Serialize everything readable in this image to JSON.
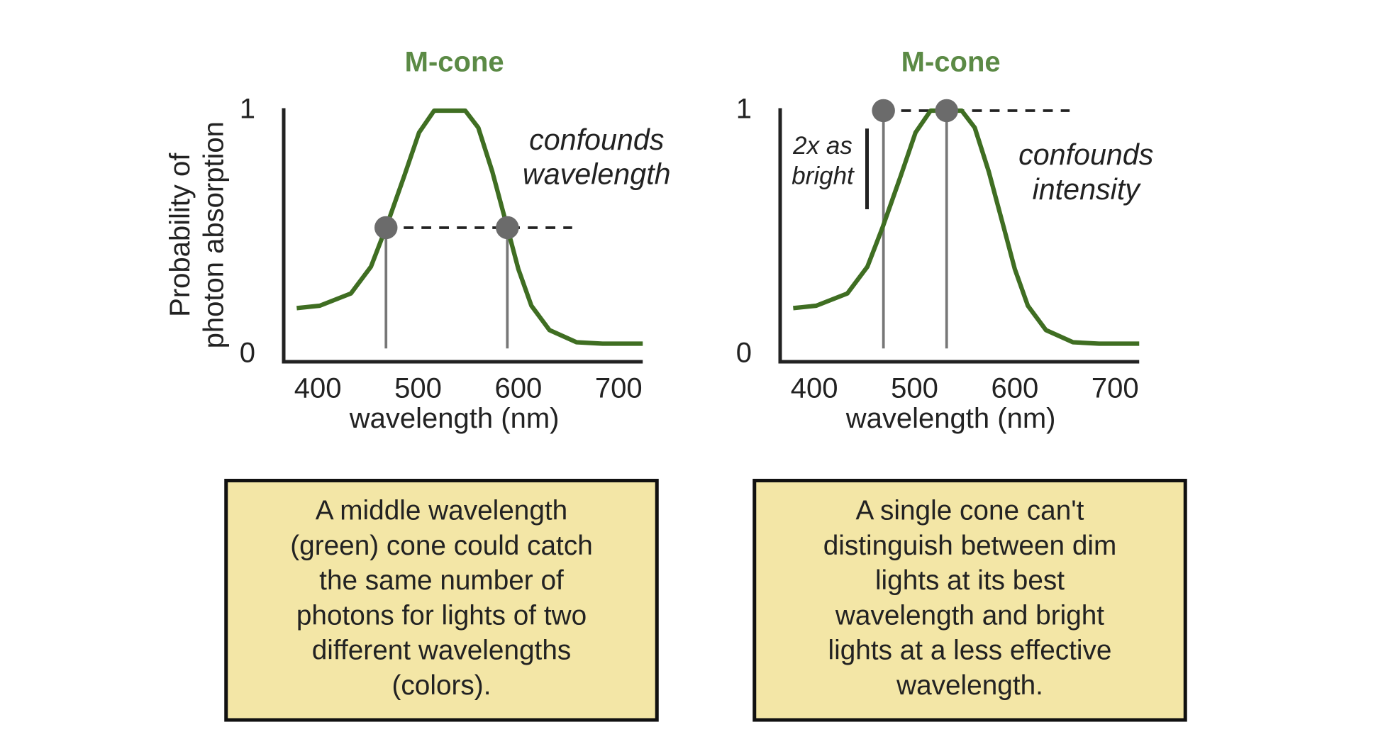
{
  "chart_data": [
    {
      "type": "line",
      "title": "M-cone",
      "x_label": "wavelength (nm)",
      "y_label": [
        "Probability of",
        "photon absorption"
      ],
      "x": [
        379,
        402,
        433,
        453,
        468,
        486,
        501,
        516,
        530,
        547,
        560,
        574,
        589,
        600,
        613,
        631,
        658,
        684,
        724
      ],
      "series": [
        {
          "color": "#3f6e22",
          "values": [
            0.19,
            0.2,
            0.25,
            0.36,
            0.52,
            0.73,
            0.91,
            1.0,
            1.0,
            1.0,
            0.93,
            0.75,
            0.52,
            0.35,
            0.2,
            0.1,
            0.05,
            0.044,
            0.044
          ]
        }
      ],
      "xlim": [
        366,
        724
      ],
      "xticks": [
        400,
        500,
        600,
        700
      ],
      "ylim": [
        -0.03,
        1.01
      ],
      "yticks": [
        0,
        1
      ],
      "markers": {
        "x": [
          468,
          589
        ],
        "y": [
          0.52,
          0.52
        ],
        "color": "#6b6b6b"
      },
      "annotation": [
        "confounds",
        "wavelength"
      ],
      "caption": [
        "A middle wavelength",
        "(green) cone could catch",
        "the same number of",
        "photons for lights of two",
        "different wavelengths",
        "(colors)."
      ]
    },
    {
      "type": "line",
      "title": "M-cone",
      "x_label": "wavelength (nm)",
      "x": [
        379,
        402,
        433,
        453,
        468,
        486,
        501,
        516,
        530,
        547,
        560,
        574,
        589,
        600,
        613,
        631,
        658,
        684,
        724
      ],
      "series": [
        {
          "color": "#3f6e22",
          "values": [
            0.19,
            0.2,
            0.25,
            0.36,
            0.52,
            0.73,
            0.91,
            1.0,
            1.0,
            1.0,
            0.93,
            0.75,
            0.52,
            0.35,
            0.2,
            0.1,
            0.05,
            0.044,
            0.044
          ]
        }
      ],
      "xlim": [
        366,
        724
      ],
      "xticks": [
        400,
        500,
        600,
        700
      ],
      "ylim": [
        -0.03,
        1.01
      ],
      "yticks": [
        0,
        1
      ],
      "markers": {
        "x": [
          469,
          532
        ],
        "y": [
          1.0,
          1.0
        ],
        "color": "#6b6b6b"
      },
      "annotation": [
        "confounds",
        "intensity"
      ],
      "side_note": [
        "2x as",
        "bright"
      ],
      "caption": [
        "A single cone can't",
        "distinguish between dim",
        "lights at its best",
        "wavelength and bright",
        "lights at a less effective",
        "wavelength."
      ]
    }
  ]
}
